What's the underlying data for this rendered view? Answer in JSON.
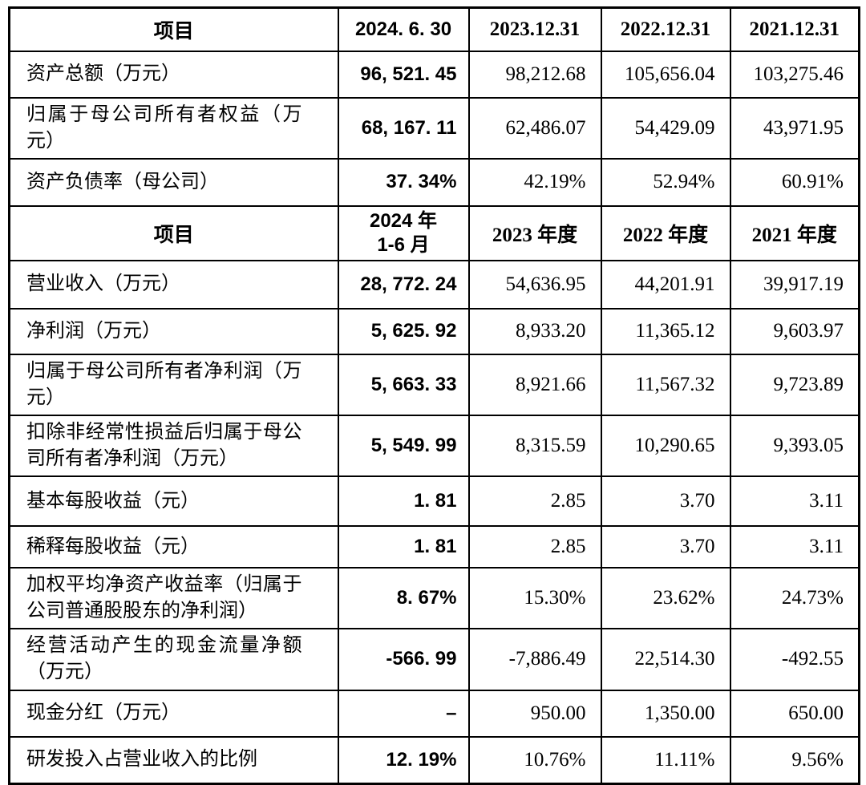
{
  "page": {
    "background_color": "#ffffff",
    "border_color": "#000000",
    "text_color": "#000000"
  },
  "table": {
    "sections": [
      {
        "header": {
          "item_label": "项目",
          "columns": [
            "2024. 6. 30",
            "2023.12.31",
            "2022.12.31",
            "2021.12.31"
          ]
        },
        "rows": [
          {
            "label": "资产总额（万元）",
            "values": [
              "96, 521. 45",
              "98,212.68",
              "105,656.04",
              "103,275.46"
            ]
          },
          {
            "label": "归属于母公司所有者权益（万元）",
            "values": [
              "68, 167. 11",
              "62,486.07",
              "54,429.09",
              "43,971.95"
            ]
          },
          {
            "label": "资产负债率（母公司）",
            "values": [
              "37. 34%",
              "42.19%",
              "52.94%",
              "60.91%"
            ]
          }
        ]
      },
      {
        "header": {
          "item_label": "项目",
          "columns": [
            "2024 年\n1-6 月",
            "2023 年度",
            "2022 年度",
            "2021 年度"
          ]
        },
        "rows": [
          {
            "label": "营业收入（万元）",
            "values": [
              "28, 772. 24",
              "54,636.95",
              "44,201.91",
              "39,917.19"
            ]
          },
          {
            "label": "净利润（万元）",
            "values": [
              "5, 625. 92",
              "8,933.20",
              "11,365.12",
              "9,603.97"
            ]
          },
          {
            "label": "归属于母公司所有者净利润（万元）",
            "values": [
              "5, 663. 33",
              "8,921.66",
              "11,567.32",
              "9,723.89"
            ]
          },
          {
            "label": "扣除非经常性损益后归属于母公司所有者净利润（万元）",
            "values": [
              "5, 549. 99",
              "8,315.59",
              "10,290.65",
              "9,393.05"
            ]
          },
          {
            "label": "基本每股收益（元）",
            "values": [
              "1. 81",
              "2.85",
              "3.70",
              "3.11"
            ]
          },
          {
            "label": "稀释每股收益（元）",
            "values": [
              "1. 81",
              "2.85",
              "3.70",
              "3.11"
            ]
          },
          {
            "label": "加权平均净资产收益率（归属于公司普通股股东的净利润）",
            "values": [
              "8. 67%",
              "15.30%",
              "23.62%",
              "24.73%"
            ]
          },
          {
            "label": "经营活动产生的现金流量净额（万元）",
            "values": [
              "-566. 99",
              "-7,886.49",
              "22,514.30",
              "-492.55"
            ]
          },
          {
            "label": "现金分红（万元）",
            "values": [
              "–",
              "950.00",
              "1,350.00",
              "650.00"
            ]
          },
          {
            "label": "研发投入占营业收入的比例",
            "values": [
              "12. 19%",
              "10.76%",
              "11.11%",
              "9.56%"
            ]
          }
        ]
      }
    ]
  }
}
